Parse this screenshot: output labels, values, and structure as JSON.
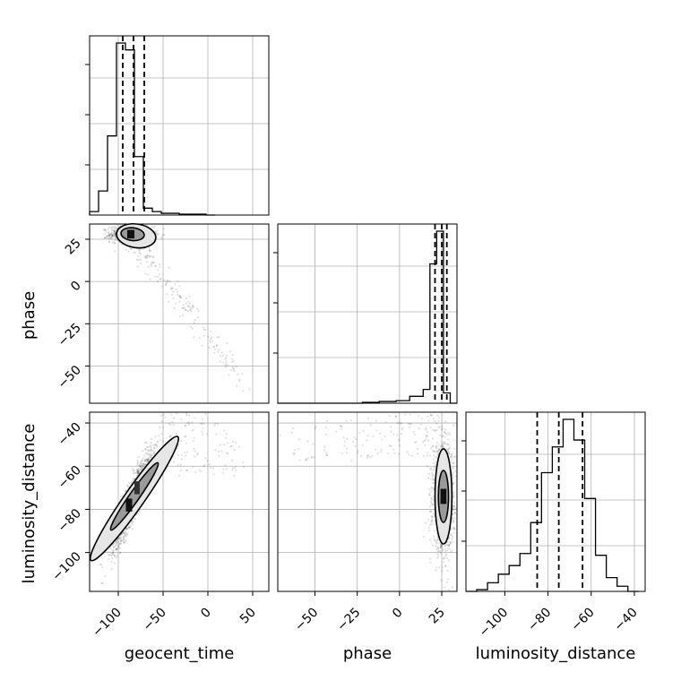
{
  "chart_data": {
    "type": "corner",
    "parameters": [
      "geocent_time",
      "phase",
      "luminosity_distance"
    ],
    "labels": {
      "geocent_time": "geocent_time",
      "phase": "phase",
      "luminosity_distance": "luminosity_distance"
    },
    "ranges": {
      "geocent_time": [
        -132,
        68
      ],
      "phase": [
        -72,
        34
      ],
      "luminosity_distance": [
        -118,
        -35
      ]
    },
    "ticks": {
      "geocent_time": [
        -100,
        -50,
        0,
        50
      ],
      "phase": [
        -50,
        -25,
        0,
        25
      ],
      "luminosity_distance": [
        -100,
        -80,
        -60,
        -40
      ]
    },
    "tick_labels": {
      "geocent_time": [
        "−100",
        "−50",
        "0",
        "50"
      ],
      "phase": [
        "−50",
        "−25",
        "0",
        "25"
      ],
      "luminosity_distance": [
        "−100",
        "−80",
        "−60",
        "−40"
      ]
    },
    "quantiles": {
      "geocent_time": [
        -95,
        -83,
        -71
      ],
      "phase": [
        21,
        25,
        28
      ],
      "luminosity_distance": [
        -85,
        -75,
        -64
      ]
    },
    "histograms": {
      "geocent_time": {
        "edges": [
          -132,
          -122,
          -112,
          -102,
          -92,
          -82,
          -72,
          -62,
          -52,
          -42,
          -32,
          -22,
          -12,
          -2,
          8
        ],
        "counts": [
          0.02,
          0.14,
          0.46,
          1.0,
          0.96,
          0.34,
          0.04,
          0.02,
          0.01,
          0.01,
          0.005,
          0.005,
          0.005,
          0.0
        ]
      },
      "phase": {
        "edges": [
          -72,
          -62,
          -52,
          -42,
          -32,
          -22,
          -12,
          -2,
          6,
          14,
          18,
          22,
          26,
          30,
          34
        ],
        "counts": [
          0.0,
          0.0,
          0.0,
          0.0,
          0.0,
          0.005,
          0.01,
          0.015,
          0.04,
          0.08,
          0.81,
          1.0,
          0.06,
          0.0
        ]
      },
      "luminosity_distance": {
        "edges": [
          -118,
          -113,
          -108,
          -103,
          -98,
          -93,
          -88,
          -83,
          -78,
          -73,
          -68,
          -63,
          -58,
          -53,
          -48,
          -43,
          -38
        ],
        "counts": [
          0.0,
          0.01,
          0.05,
          0.1,
          0.15,
          0.22,
          0.4,
          0.69,
          0.84,
          1.0,
          0.88,
          0.54,
          0.21,
          0.08,
          0.03,
          0.0
        ]
      }
    },
    "scatter_model": {
      "geocent_time_vs_phase": {
        "center": [
          -85,
          28
        ],
        "spread": [
          13,
          2.6
        ],
        "tail_to": [
          40,
          -60
        ]
      },
      "geocent_time_vs_luminosity_distance": {
        "center": [
          -85,
          -76
        ],
        "correlation": 0.9,
        "spread": [
          11,
          11
        ]
      },
      "phase_vs_luminosity_distance": {
        "center": [
          26,
          -75
        ],
        "spread": [
          3,
          12
        ],
        "tail_to": [
          -70,
          -40
        ]
      }
    },
    "grid": true
  }
}
